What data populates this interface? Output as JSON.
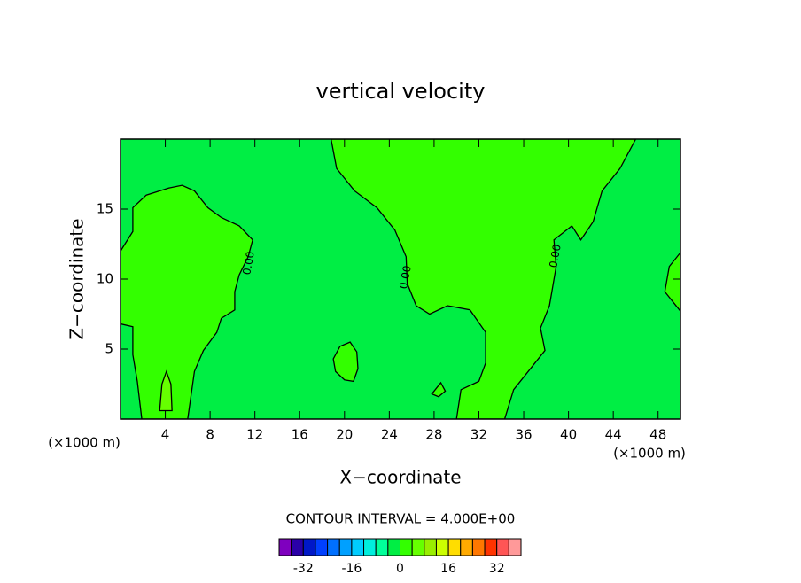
{
  "chart_data": {
    "type": "contour",
    "title": "vertical velocity",
    "x_label": "X−coordinate",
    "y_label": "Z−coordinate",
    "x_unit_label": "(×1000 m)",
    "xlim": [
      0,
      50
    ],
    "ylim": [
      0,
      20
    ],
    "xticks": [
      4,
      8,
      12,
      16,
      20,
      24,
      28,
      32,
      36,
      40,
      44,
      48
    ],
    "yticks": [
      5,
      10,
      15
    ],
    "contour_interval_label": "CONTOUR INTERVAL = 4.000E+00",
    "contour_labels": [
      "0.00",
      "0.00",
      "0.00"
    ],
    "contours": [
      {
        "level": 0,
        "points": [
          [
            0,
            12.0
          ],
          [
            1.1,
            13.4
          ],
          [
            1.1,
            15.1
          ],
          [
            2.3,
            16.0
          ],
          [
            4.3,
            16.5
          ],
          [
            5.5,
            16.7
          ],
          [
            6.6,
            16.3
          ],
          [
            7.8,
            15.1
          ],
          [
            9.0,
            14.4
          ],
          [
            10.6,
            13.8
          ],
          [
            11.8,
            12.8
          ],
          [
            11.4,
            11.6
          ],
          [
            10.6,
            10.3
          ],
          [
            10.2,
            9.1
          ],
          [
            10.2,
            7.8
          ],
          [
            9.0,
            7.2
          ],
          [
            8.6,
            6.2
          ],
          [
            7.4,
            4.9
          ],
          [
            6.6,
            3.4
          ],
          [
            6.0,
            0
          ],
          [
            1.9,
            0
          ],
          [
            1.5,
            2.7
          ],
          [
            1.1,
            4.6
          ],
          [
            1.1,
            6.6
          ],
          [
            0,
            6.8
          ]
        ]
      },
      {
        "level": 0,
        "points": [
          [
            18.8,
            20
          ],
          [
            19.3,
            17.9
          ],
          [
            20.9,
            16.3
          ],
          [
            22.9,
            15.1
          ],
          [
            24.5,
            13.5
          ],
          [
            25.5,
            11.6
          ],
          [
            25.6,
            9.7
          ],
          [
            26.4,
            8.1
          ],
          [
            27.6,
            7.5
          ],
          [
            29.2,
            8.1
          ],
          [
            31.2,
            7.8
          ],
          [
            32.6,
            6.2
          ],
          [
            32.6,
            4.0
          ],
          [
            32.0,
            2.7
          ],
          [
            30.4,
            2.1
          ],
          [
            30.0,
            0
          ],
          [
            34.3,
            0
          ],
          [
            35.1,
            2.1
          ],
          [
            36.7,
            3.7
          ],
          [
            37.9,
            4.9
          ],
          [
            37.5,
            6.5
          ],
          [
            38.3,
            8.1
          ],
          [
            38.9,
            10.9
          ],
          [
            38.7,
            12.8
          ],
          [
            40.3,
            13.8
          ],
          [
            41.1,
            12.8
          ],
          [
            42.2,
            14.1
          ],
          [
            43.0,
            16.3
          ],
          [
            44.6,
            17.9
          ],
          [
            46.0,
            20
          ]
        ]
      },
      {
        "level": 0,
        "points": [
          [
            50,
            11.9
          ],
          [
            49.0,
            10.9
          ],
          [
            48.6,
            9.1
          ],
          [
            50,
            7.7
          ]
        ]
      },
      {
        "level": 0,
        "points": [
          [
            19.0,
            4.3
          ],
          [
            19.6,
            5.2
          ],
          [
            20.5,
            5.5
          ],
          [
            21.1,
            4.8
          ],
          [
            21.2,
            3.6
          ],
          [
            20.8,
            2.7
          ],
          [
            20.0,
            2.8
          ],
          [
            19.2,
            3.4
          ]
        ]
      },
      {
        "level": 0,
        "points": [
          [
            27.8,
            1.8
          ],
          [
            28.6,
            2.6
          ],
          [
            29.0,
            2.0
          ],
          [
            28.4,
            1.6
          ]
        ]
      },
      {
        "level": 4,
        "points": [
          [
            3.5,
            0.6
          ],
          [
            3.7,
            2.5
          ],
          [
            4.1,
            3.4
          ],
          [
            4.5,
            2.5
          ],
          [
            4.6,
            0.6
          ]
        ]
      }
    ],
    "colorbar": {
      "levels": [
        -40,
        -36,
        -32,
        -28,
        -24,
        -20,
        -16,
        -12,
        -8,
        -4,
        0,
        4,
        8,
        12,
        16,
        20,
        24,
        28,
        32,
        36,
        40
      ],
      "colors": [
        "#7f00bf",
        "#2a00a8",
        "#0018c8",
        "#0040ff",
        "#0070ff",
        "#00a0ff",
        "#00ccff",
        "#00eedd",
        "#00ff99",
        "#00ee44",
        "#33ff00",
        "#66ff00",
        "#99ee00",
        "#ccff00",
        "#ffdd00",
        "#ffaa00",
        "#ff7700",
        "#ff3300",
        "#ff5555",
        "#ff9999"
      ],
      "ticks": [
        -32,
        -16,
        0,
        16,
        32
      ]
    }
  }
}
